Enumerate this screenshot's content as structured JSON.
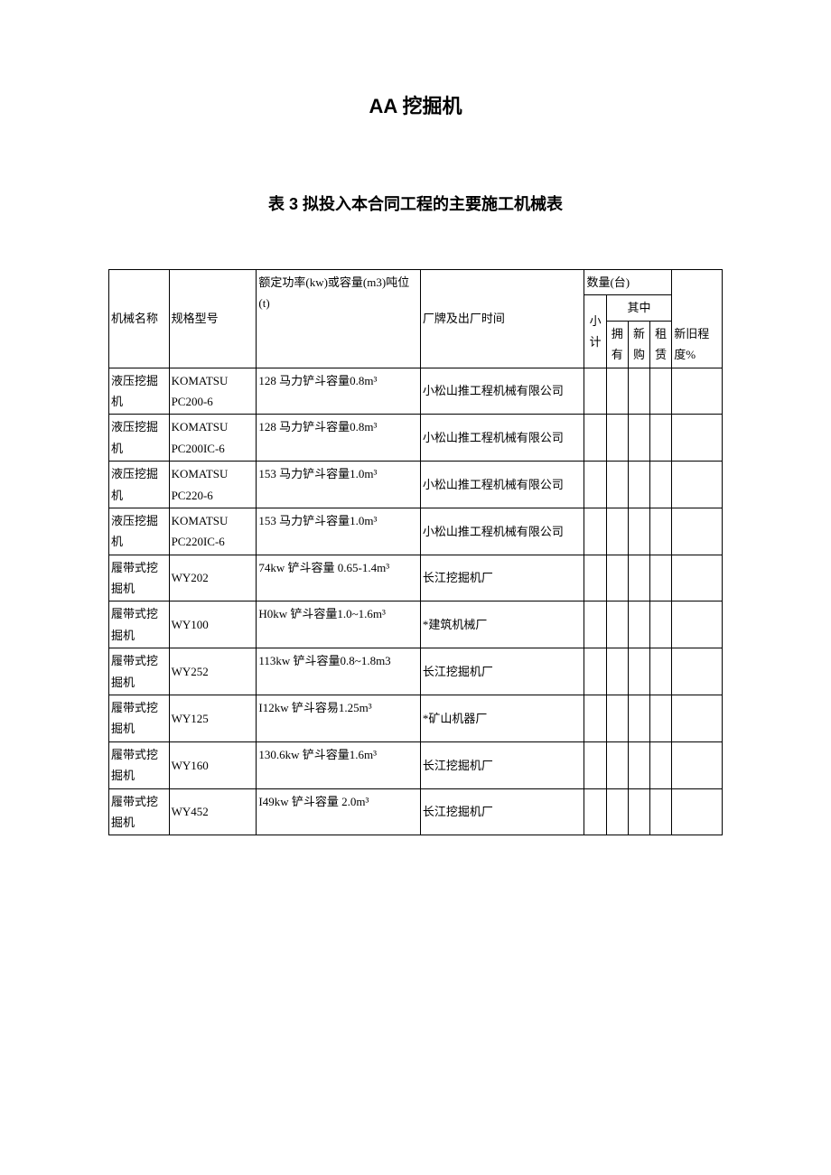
{
  "title_main": "AA 挖掘机",
  "title_sub": "表 3 拟投入本合同工程的主要施工机械表",
  "headers": {
    "col1": "机械名称",
    "col2": "规格型号",
    "col3": "额定功率(kw)或容量(m3)吨位(t)",
    "col4": "厂牌及出厂时间",
    "qty_group": "数量(台)",
    "xiaoji": "小计",
    "qizhong": "其中",
    "yongyou": "拥有",
    "xingou": "新购",
    "zulin": "租赁",
    "condition": "新旧程度%"
  },
  "rows": [
    {
      "name": "液压挖掘机",
      "model": "KOMATSU PC200-6",
      "power": "128 马力铲斗容量0.8m³",
      "brand": "小松山推工程机械有限公司"
    },
    {
      "name": "液压挖掘机",
      "model": "KOMATSU PC200IC-6",
      "power": "128 马力铲斗容量0.8m³",
      "brand": "小松山推工程机械有限公司"
    },
    {
      "name": "液压挖掘机",
      "model": "KOMATSU PC220-6",
      "power": "153 马力铲斗容量1.0m³",
      "brand": "小松山推工程机械有限公司"
    },
    {
      "name": "液压挖掘机",
      "model": "KOMATSU PC220IC-6",
      "power": "153 马力铲斗容量1.0m³",
      "brand": "小松山推工程机械有限公司"
    },
    {
      "name": "履带式挖掘机",
      "model": "WY202",
      "power": "74kw 铲斗容量 0.65-1.4m³",
      "brand": "长江挖掘机厂"
    },
    {
      "name": "履带式挖掘机",
      "model": "WY100",
      "power": "H0kw 铲斗容量1.0~1.6m³",
      "brand": "*建筑机械厂"
    },
    {
      "name": "履带式挖掘机",
      "model": "WY252",
      "power": "113kw 铲斗容量0.8~1.8m3",
      "brand": "长江挖掘机厂"
    },
    {
      "name": "履带式挖掘机",
      "model": "WY125",
      "power": "I12kw 铲斗容易1.25m³",
      "brand": "*矿山机器厂"
    },
    {
      "name": "履带式挖掘机",
      "model": "WY160",
      "power": "130.6kw 铲斗容量1.6m³",
      "brand": "长江挖掘机厂"
    },
    {
      "name": "履带式挖掘机",
      "model": "WY452",
      "power": "I49kw 铲斗容量 2.0m³",
      "brand": "长江挖掘机厂"
    }
  ]
}
